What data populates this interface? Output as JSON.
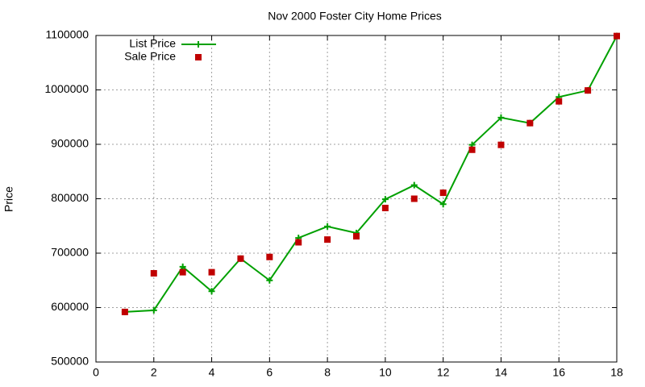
{
  "chart_data": {
    "type": "line",
    "title": "Nov 2000 Foster City Home Prices",
    "y_label": "Price",
    "x": [
      1,
      2,
      3,
      4,
      5,
      6,
      7,
      8,
      9,
      10,
      11,
      12,
      13,
      14,
      15,
      16,
      17,
      18
    ],
    "series": [
      {
        "name": "List Price",
        "color": "#00a000",
        "style": "linespoints",
        "values": [
          592000,
          595000,
          675000,
          630000,
          690000,
          650000,
          728000,
          749000,
          737000,
          799000,
          825000,
          790000,
          899000,
          949000,
          939000,
          987000,
          999000,
          1099000
        ]
      },
      {
        "name": "Sale Price",
        "color": "#c00000",
        "style": "points",
        "values": [
          592000,
          663000,
          665000,
          665000,
          690000,
          693000,
          720000,
          725000,
          731000,
          783000,
          800000,
          811000,
          890000,
          899000,
          939000,
          979000,
          999000,
          1099000
        ]
      }
    ],
    "xlim": [
      0,
      18
    ],
    "xticks": [
      0,
      2,
      4,
      6,
      8,
      10,
      12,
      14,
      16,
      18
    ],
    "ylim": [
      500000,
      1100000
    ],
    "yticks": [
      500000,
      600000,
      700000,
      800000,
      900000,
      1000000,
      1100000
    ],
    "grid": true,
    "legend": "top-left"
  }
}
